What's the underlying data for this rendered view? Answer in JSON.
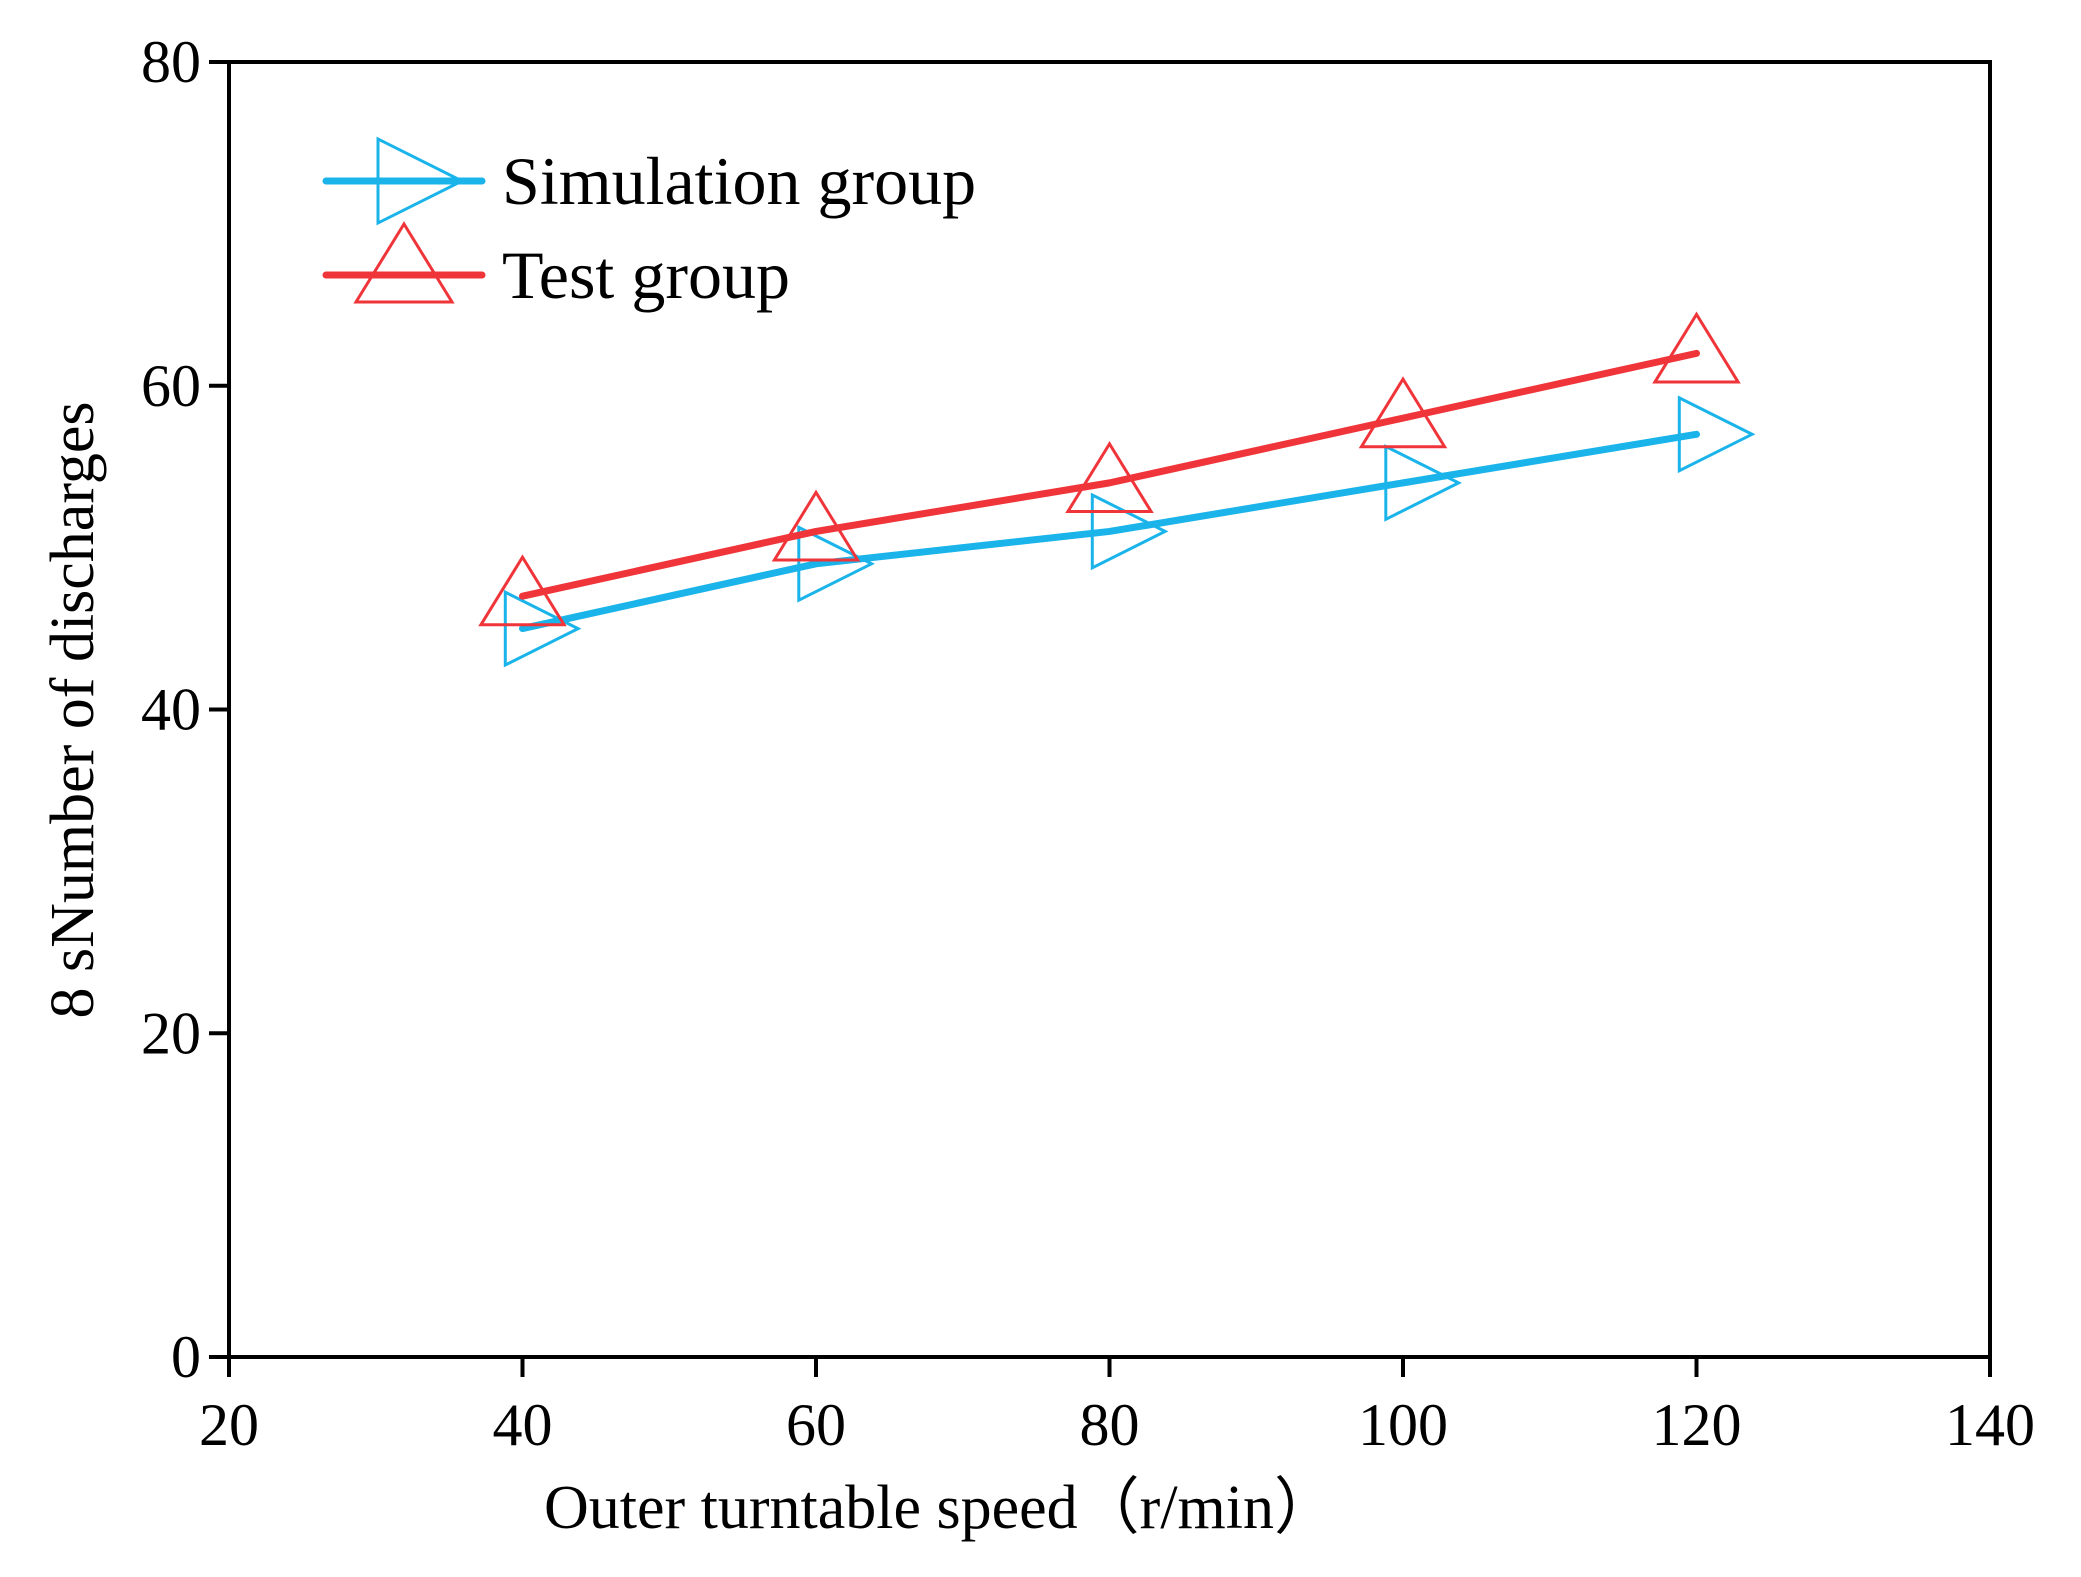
{
  "chart_data": {
    "type": "line",
    "title": "",
    "xlabel": "Outer turntable speed（r/min）",
    "ylabel": "8 sNumber of discharges",
    "xlim": [
      20,
      140
    ],
    "ylim": [
      0,
      80
    ],
    "xticks": [
      "20",
      "40",
      "60",
      "80",
      "100",
      "120",
      "140"
    ],
    "yticks": [
      "0",
      "20",
      "40",
      "60",
      "80"
    ],
    "x": [
      40,
      60,
      80,
      100,
      120
    ],
    "series": [
      {
        "name": "Simulation group",
        "values": [
          45,
          49,
          51,
          54,
          57
        ],
        "color": "#1ab4ea",
        "marker": "triangle-right"
      },
      {
        "name": "Test group",
        "values": [
          47,
          51,
          54,
          58,
          62
        ],
        "color": "#f0353a",
        "marker": "triangle-up"
      }
    ],
    "legend": "top-left",
    "grid": false
  }
}
